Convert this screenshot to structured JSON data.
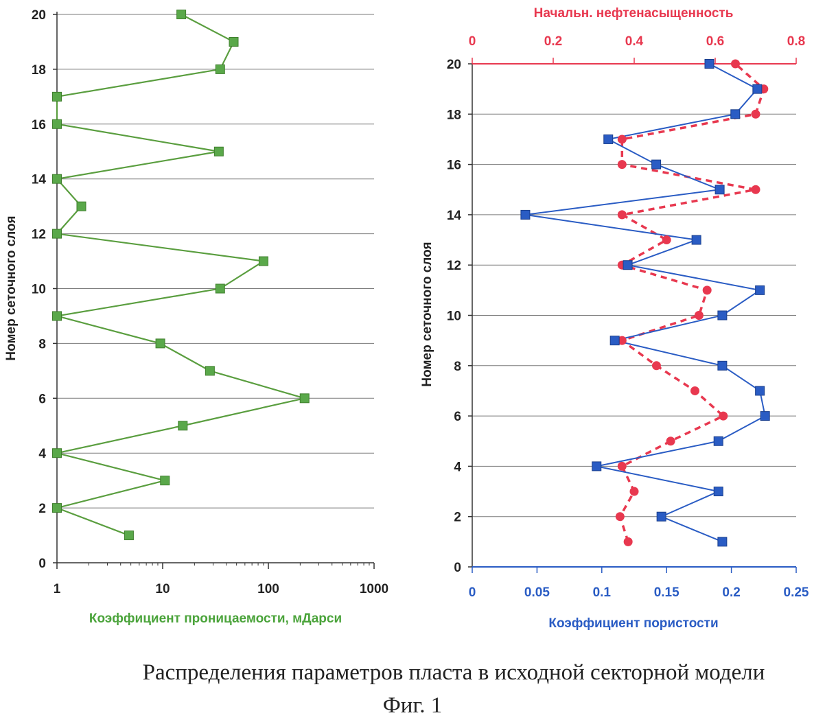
{
  "chart_data": [
    {
      "type": "line",
      "ylabel": "Номер сеточного слоя",
      "xlabel": "Коэффициент проницаемости, мДарси",
      "x_scale": "log",
      "xlim": [
        1,
        1000
      ],
      "ylim": [
        0,
        20
      ],
      "x_ticks": [
        "1",
        "10",
        "100",
        "1000"
      ],
      "y_ticks": [
        "0",
        "2",
        "4",
        "6",
        "8",
        "10",
        "12",
        "14",
        "16",
        "18",
        "20"
      ],
      "grid": "horizontal",
      "colors": {
        "series": "#5a9e3f",
        "marker": "#5aa84a",
        "label": "#4aa33a"
      },
      "series": [
        {
          "points": [
            {
              "y": 1,
              "x": 4.8
            },
            {
              "y": 2,
              "x": 1
            },
            {
              "y": 3,
              "x": 10.5
            },
            {
              "y": 4,
              "x": 1
            },
            {
              "y": 5,
              "x": 15.5
            },
            {
              "y": 6,
              "x": 220
            },
            {
              "y": 7,
              "x": 28
            },
            {
              "y": 8,
              "x": 9.5
            },
            {
              "y": 9,
              "x": 1
            },
            {
              "y": 10,
              "x": 35
            },
            {
              "y": 11,
              "x": 90
            },
            {
              "y": 12,
              "x": 1
            },
            {
              "y": 13,
              "x": 1.7
            },
            {
              "y": 14,
              "x": 1
            },
            {
              "y": 15,
              "x": 34
            },
            {
              "y": 16,
              "x": 1
            },
            {
              "y": 17,
              "x": 1
            },
            {
              "y": 18,
              "x": 35
            },
            {
              "y": 19,
              "x": 47
            },
            {
              "y": 20,
              "x": 15
            }
          ]
        }
      ]
    },
    {
      "type": "line",
      "ylabel": "Номер сеточного слоя",
      "xlabel": "Коэффициент пористости",
      "x2label": "Начальн. нефтенасыщенность",
      "xlim": [
        0,
        0.25
      ],
      "x2lim": [
        0,
        0.8
      ],
      "ylim": [
        0,
        20
      ],
      "x_ticks": [
        "0",
        "0.05",
        "0.1",
        "0.15",
        "0.2",
        "0.25"
      ],
      "x2_ticks": [
        "0",
        "0.2",
        "0.4",
        "0.6",
        "0.8"
      ],
      "y_ticks": [
        "0",
        "2",
        "4",
        "6",
        "8",
        "10",
        "12",
        "14",
        "16",
        "18",
        "20"
      ],
      "grid": "horizontal",
      "colors": {
        "porosity": "#2a5cc4",
        "saturation": "#e8384f"
      },
      "series": [
        {
          "axis": "bottom",
          "style": "solid",
          "marker": "square",
          "points": [
            {
              "y": 1,
              "x": 0.193
            },
            {
              "y": 2,
              "x": 0.146
            },
            {
              "y": 3,
              "x": 0.19
            },
            {
              "y": 4,
              "x": 0.096
            },
            {
              "y": 5,
              "x": 0.19
            },
            {
              "y": 6,
              "x": 0.226
            },
            {
              "y": 7,
              "x": 0.222
            },
            {
              "y": 8,
              "x": 0.193
            },
            {
              "y": 9,
              "x": 0.11
            },
            {
              "y": 10,
              "x": 0.193
            },
            {
              "y": 11,
              "x": 0.222
            },
            {
              "y": 12,
              "x": 0.12
            },
            {
              "y": 13,
              "x": 0.173
            },
            {
              "y": 14,
              "x": 0.041
            },
            {
              "y": 15,
              "x": 0.191
            },
            {
              "y": 16,
              "x": 0.142
            },
            {
              "y": 17,
              "x": 0.105
            },
            {
              "y": 18,
              "x": 0.203
            },
            {
              "y": 19,
              "x": 0.22
            },
            {
              "y": 20,
              "x": 0.183
            }
          ]
        },
        {
          "axis": "top",
          "style": "dashed",
          "marker": "circle",
          "points": [
            {
              "y": 1,
              "x": 0.385
            },
            {
              "y": 2,
              "x": 0.365
            },
            {
              "y": 3,
              "x": 0.4
            },
            {
              "y": 4,
              "x": 0.37
            },
            {
              "y": 5,
              "x": 0.49
            },
            {
              "y": 6,
              "x": 0.62
            },
            {
              "y": 7,
              "x": 0.55
            },
            {
              "y": 8,
              "x": 0.455
            },
            {
              "y": 9,
              "x": 0.37
            },
            {
              "y": 10,
              "x": 0.56
            },
            {
              "y": 11,
              "x": 0.58
            },
            {
              "y": 12,
              "x": 0.37
            },
            {
              "y": 13,
              "x": 0.48
            },
            {
              "y": 14,
              "x": 0.37
            },
            {
              "y": 15,
              "x": 0.7
            },
            {
              "y": 16,
              "x": 0.37
            },
            {
              "y": 17,
              "x": 0.37
            },
            {
              "y": 18,
              "x": 0.7
            },
            {
              "y": 19,
              "x": 0.72
            },
            {
              "y": 20,
              "x": 0.65
            }
          ]
        }
      ]
    }
  ],
  "caption": {
    "main": "Распределения параметров пласта в исходной секторной модели",
    "figure": "Фиг. 1"
  }
}
